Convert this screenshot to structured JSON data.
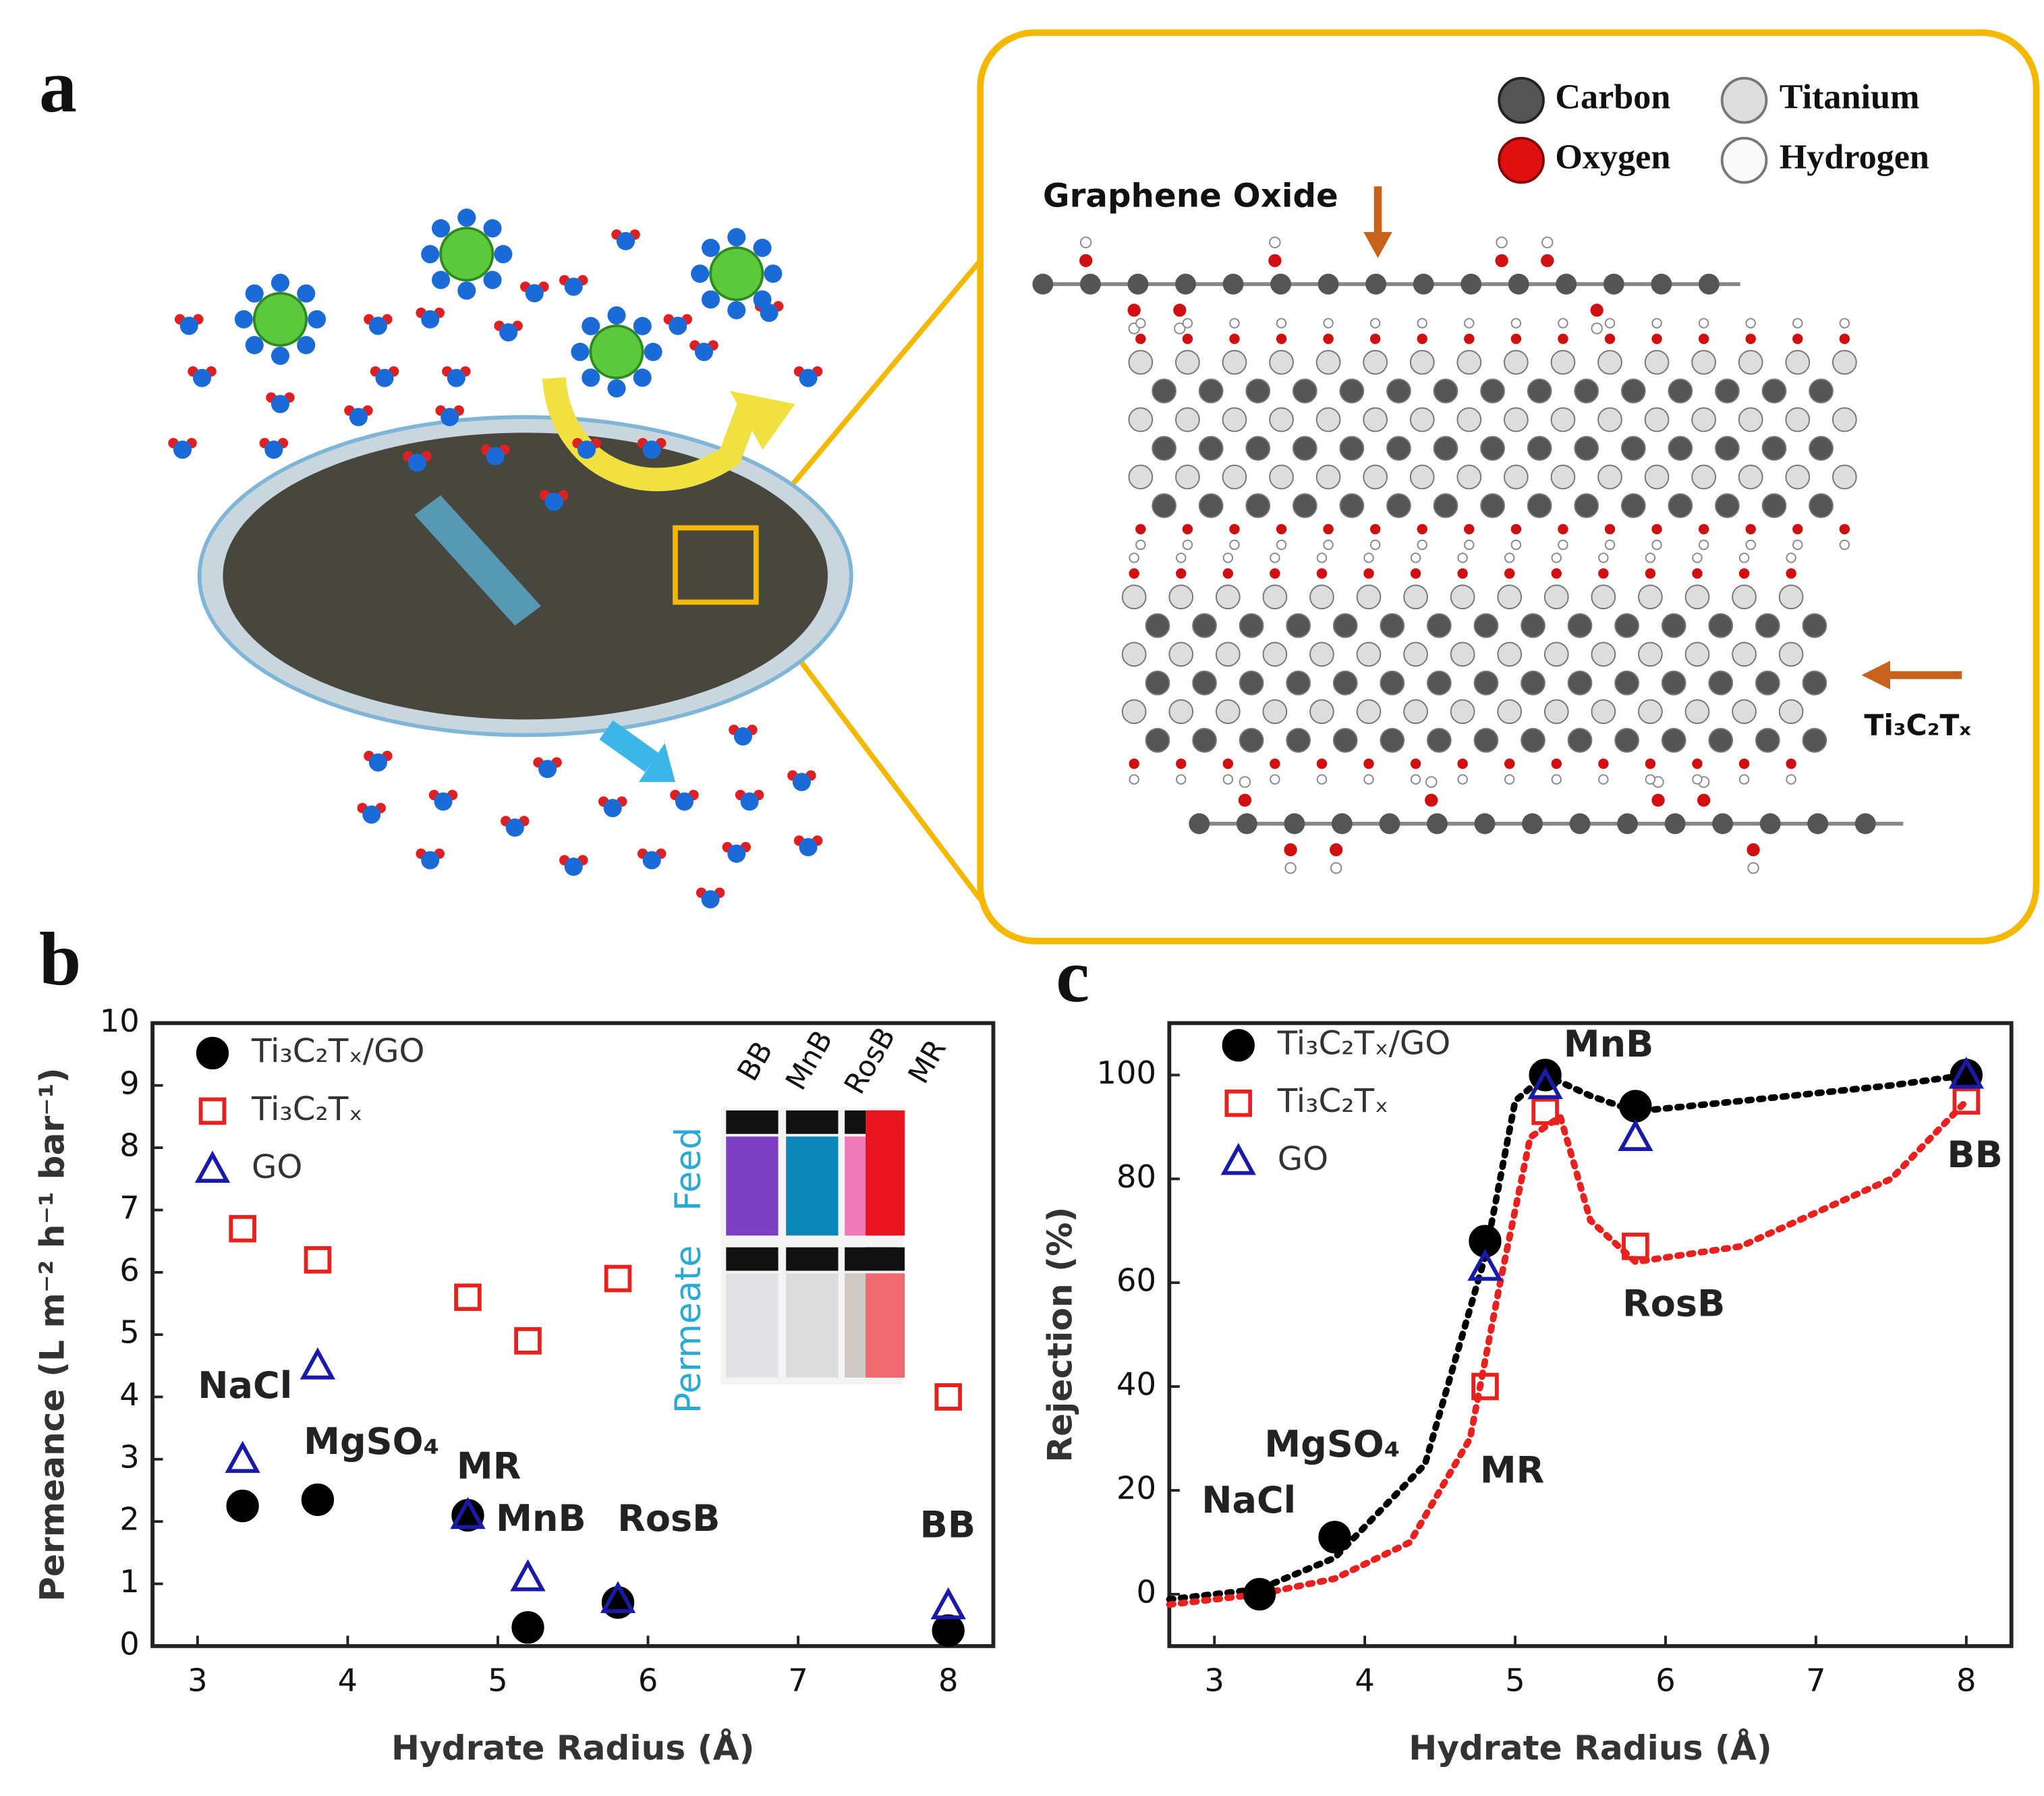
{
  "panel_labels": [
    "a",
    "b",
    "c"
  ],
  "diagram": {
    "legend": [
      "Carbon",
      "Titanium",
      "Oxygen",
      "Hydrogen"
    ],
    "labels": [
      "Graphene Oxide",
      "Ti₃C₂Tₓ"
    ]
  },
  "chart_data": [
    {
      "type": "scatter",
      "x_label": "Hydrate Radius (Å)",
      "y_label": "Permeance (L m⁻² h⁻¹ bar⁻¹)",
      "x": [
        3.3,
        3.8,
        4.8,
        5.2,
        5.8,
        8.0
      ],
      "point_labels": [
        "NaCl",
        "MgSO₄",
        "MR",
        "MnB",
        "RosB",
        "BB"
      ],
      "series": [
        {
          "name": "Ti₃C₂Tₓ/GO",
          "color": "#000000",
          "marker": "circle",
          "filled": true,
          "values": [
            2.25,
            2.35,
            2.1,
            0.3,
            0.7,
            0.25
          ]
        },
        {
          "name": "Ti₃C₂Tₓ",
          "color": "#e8201e",
          "marker": "square",
          "filled": false,
          "values": [
            6.7,
            6.2,
            5.6,
            4.9,
            5.9,
            4.0
          ]
        },
        {
          "name": "GO",
          "color": "#1a1aa8",
          "marker": "triangle",
          "filled": false,
          "values": [
            3.0,
            4.5,
            2.1,
            1.1,
            0.75,
            0.65
          ]
        }
      ],
      "xlim": [
        2.7,
        8.3
      ],
      "xticks": [
        3,
        4,
        5,
        6,
        7,
        8
      ],
      "ylim": [
        0,
        10
      ],
      "yticks": [
        0,
        1,
        2,
        3,
        4,
        5,
        6,
        7,
        8,
        9,
        10
      ],
      "inset": {
        "labels": [
          "BB",
          "MnB",
          "RosB",
          "MR"
        ],
        "side_labels": [
          "Permeate",
          "Feed"
        ]
      }
    },
    {
      "type": "scatter",
      "x_label": "Hydrate Radius (Å)",
      "y_label": "Rejection (%)",
      "x": [
        3.3,
        3.8,
        4.8,
        5.2,
        5.8,
        8.0
      ],
      "point_labels": [
        "NaCl",
        "MgSO₄",
        "MR",
        "MnB",
        "RosB",
        "BB"
      ],
      "series": [
        {
          "name": "Ti₃C₂Tₓ/GO",
          "color": "#000000",
          "marker": "circle",
          "filled": true,
          "values": [
            0,
            11,
            68,
            100,
            94,
            100
          ]
        },
        {
          "name": "Ti₃C₂Tₓ",
          "color": "#e8201e",
          "marker": "square",
          "filled": false,
          "values": [
            null,
            null,
            40,
            93,
            67,
            95
          ]
        },
        {
          "name": "GO",
          "color": "#1a1aa8",
          "marker": "triangle",
          "filled": false,
          "values": [
            null,
            null,
            63,
            98,
            88,
            100
          ]
        }
      ],
      "fits": [
        {
          "color": "#000000",
          "x": [
            2.7,
            3.3,
            3.8,
            4.4,
            4.8,
            5.0,
            5.2,
            5.5,
            5.8,
            6.5,
            7.5,
            8.0
          ],
          "values": [
            -1,
            1,
            7,
            25,
            65,
            95,
            100,
            96,
            93,
            95,
            98,
            100
          ]
        },
        {
          "color": "#e8201e",
          "x": [
            2.7,
            3.3,
            3.8,
            4.3,
            4.7,
            4.9,
            5.1,
            5.3,
            5.5,
            5.8,
            6.5,
            7.5,
            8.0
          ],
          "values": [
            -2,
            0,
            3,
            10,
            30,
            60,
            88,
            92,
            72,
            64,
            67,
            80,
            95
          ]
        }
      ],
      "xlim": [
        2.7,
        8.3
      ],
      "xticks": [
        3,
        4,
        5,
        6,
        7,
        8
      ],
      "ylim": [
        -10,
        110
      ],
      "yticks": [
        0,
        20,
        40,
        60,
        80,
        100
      ]
    }
  ]
}
